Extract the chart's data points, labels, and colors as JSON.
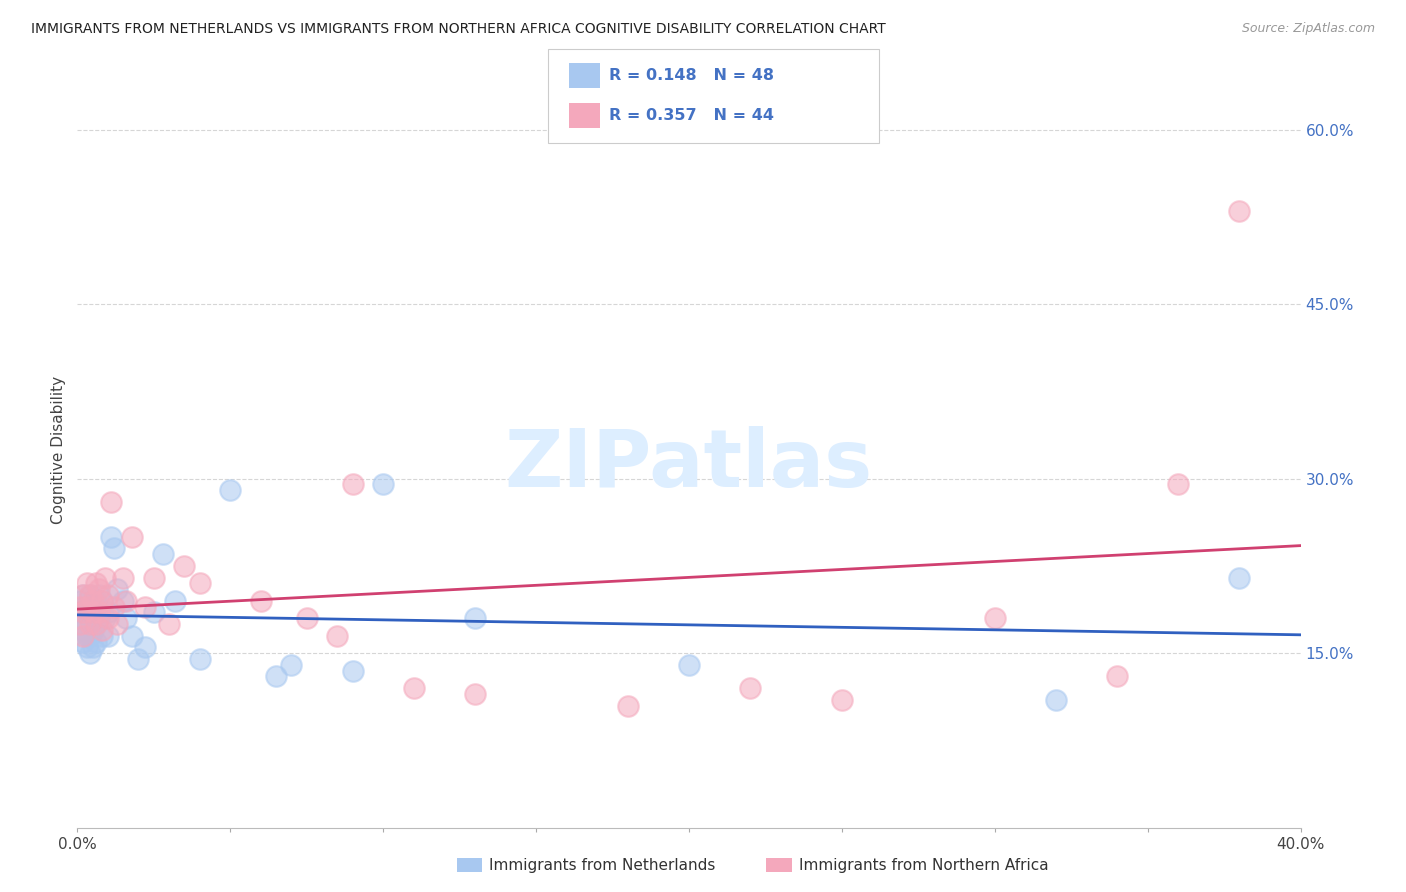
{
  "title": "IMMIGRANTS FROM NETHERLANDS VS IMMIGRANTS FROM NORTHERN AFRICA COGNITIVE DISABILITY CORRELATION CHART",
  "source": "Source: ZipAtlas.com",
  "xlabel_netherlands": "Immigrants from Netherlands",
  "xlabel_northern_africa": "Immigrants from Northern Africa",
  "ylabel": "Cognitive Disability",
  "xlim": [
    0.0,
    0.4
  ],
  "ylim": [
    0.0,
    0.65
  ],
  "yticks_right": [
    0.15,
    0.3,
    0.45,
    0.6
  ],
  "ytick_labels_right": [
    "15.0%",
    "30.0%",
    "45.0%",
    "60.0%"
  ],
  "R_netherlands": 0.148,
  "N_netherlands": 48,
  "R_northern_africa": 0.357,
  "N_northern_africa": 44,
  "color_netherlands": "#a8c8f0",
  "color_northern_africa": "#f4a8bc",
  "line_color_netherlands": "#3060c0",
  "line_color_northern_africa": "#d04070",
  "background_color": "#ffffff",
  "grid_color": "#cccccc",
  "watermark_color": "#ddeeff",
  "netherlands_x": [
    0.001,
    0.001,
    0.002,
    0.002,
    0.002,
    0.002,
    0.003,
    0.003,
    0.003,
    0.003,
    0.004,
    0.004,
    0.004,
    0.004,
    0.005,
    0.005,
    0.005,
    0.006,
    0.006,
    0.006,
    0.007,
    0.007,
    0.008,
    0.008,
    0.009,
    0.01,
    0.01,
    0.011,
    0.012,
    0.013,
    0.015,
    0.016,
    0.018,
    0.02,
    0.022,
    0.025,
    0.028,
    0.032,
    0.04,
    0.05,
    0.065,
    0.07,
    0.09,
    0.1,
    0.13,
    0.2,
    0.32,
    0.38
  ],
  "netherlands_y": [
    0.175,
    0.195,
    0.2,
    0.185,
    0.17,
    0.16,
    0.19,
    0.175,
    0.165,
    0.155,
    0.2,
    0.18,
    0.165,
    0.15,
    0.185,
    0.17,
    0.155,
    0.195,
    0.175,
    0.16,
    0.2,
    0.18,
    0.195,
    0.165,
    0.18,
    0.185,
    0.165,
    0.25,
    0.24,
    0.205,
    0.195,
    0.18,
    0.165,
    0.145,
    0.155,
    0.185,
    0.235,
    0.195,
    0.145,
    0.29,
    0.13,
    0.14,
    0.135,
    0.295,
    0.18,
    0.14,
    0.11,
    0.215
  ],
  "northern_africa_x": [
    0.001,
    0.001,
    0.002,
    0.002,
    0.002,
    0.003,
    0.003,
    0.004,
    0.004,
    0.005,
    0.005,
    0.006,
    0.006,
    0.007,
    0.007,
    0.008,
    0.008,
    0.009,
    0.01,
    0.01,
    0.011,
    0.012,
    0.013,
    0.015,
    0.016,
    0.018,
    0.022,
    0.025,
    0.03,
    0.035,
    0.04,
    0.06,
    0.075,
    0.085,
    0.09,
    0.11,
    0.13,
    0.18,
    0.22,
    0.25,
    0.3,
    0.34,
    0.36,
    0.38
  ],
  "northern_africa_y": [
    0.19,
    0.175,
    0.2,
    0.185,
    0.165,
    0.21,
    0.19,
    0.2,
    0.175,
    0.195,
    0.185,
    0.21,
    0.175,
    0.205,
    0.185,
    0.195,
    0.17,
    0.215,
    0.2,
    0.18,
    0.28,
    0.19,
    0.175,
    0.215,
    0.195,
    0.25,
    0.19,
    0.215,
    0.175,
    0.225,
    0.21,
    0.195,
    0.18,
    0.165,
    0.295,
    0.12,
    0.115,
    0.105,
    0.12,
    0.11,
    0.18,
    0.13,
    0.295,
    0.53
  ]
}
